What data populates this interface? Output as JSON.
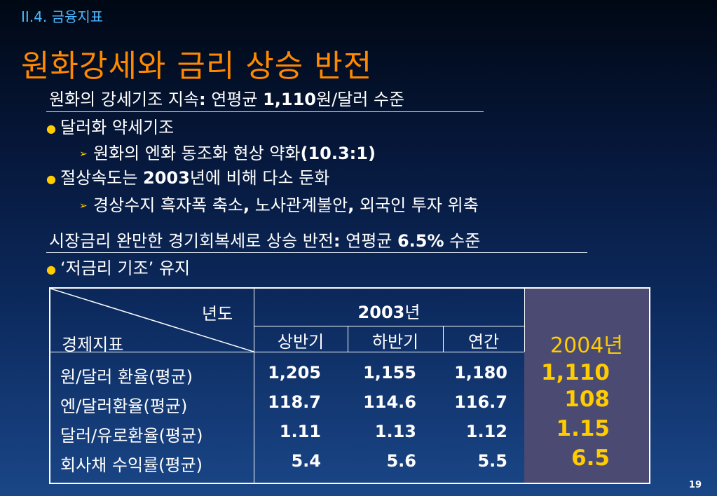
{
  "section_label": "II.4. 금융지표",
  "title": "원화강세와 금리 상승 반전",
  "block1": {
    "heading_pre": "원화의 강세기조 지속",
    "heading_colon": ":",
    "heading_mid": " 연평균 ",
    "heading_num": "1,110",
    "heading_post": "원/달러 수준",
    "bullet1": "달러화 약세기조",
    "sub1_pre": "원화의 엔화 동조화 현상 약화",
    "sub1_bold": "(10.3:1)",
    "bullet2_pre": "절상속도는 ",
    "bullet2_bold": "2003",
    "bullet2_post": "년에 비해 다소 둔화",
    "sub2_a": "경상수지 흑자폭 축소",
    "sub2_comma1": ",",
    "sub2_b": " 노사관계불안",
    "sub2_comma2": ",",
    "sub2_c": " 외국인 투자 위축"
  },
  "block2": {
    "heading_pre": "시장금리 완만한 경기회복세로 상승 반전",
    "heading_colon": ":",
    "heading_mid": " 연평균 ",
    "heading_num": "6.5%",
    "heading_post": " 수준",
    "bullet1": "‘저금리 기조’ 유지"
  },
  "table": {
    "corner_top": "년도",
    "corner_bottom": "경제지표",
    "year2003_num": "2003",
    "year2003_suffix": "년",
    "sub_headers": [
      "상반기",
      "하반기",
      "연간"
    ],
    "year2004": "2004년",
    "rows": [
      {
        "label": "원/달러 환율(평균)",
        "h1": "1,205",
        "h2": "1,155",
        "annual": "1,180",
        "y2004": "1,110"
      },
      {
        "label": "엔/달러환율(평균)",
        "h1": "118.7",
        "h2": "114.6",
        "annual": "116.7",
        "y2004": "108"
      },
      {
        "label": "달러/유로환율(평균)",
        "h1": "1.11",
        "h2": "1.13",
        "annual": "1.12",
        "y2004": "1.15"
      },
      {
        "label": "회사채 수익률(평균)",
        "h1": "5.4",
        "h2": "5.6",
        "annual": "5.5",
        "y2004": "6.5"
      }
    ]
  },
  "page_number": "19",
  "colors": {
    "title": "#ff8800",
    "section": "#4fb8ff",
    "bullet": "#ffcc00",
    "highlight_bg": "#4a4a72",
    "highlight_text": "#ffcc00"
  }
}
